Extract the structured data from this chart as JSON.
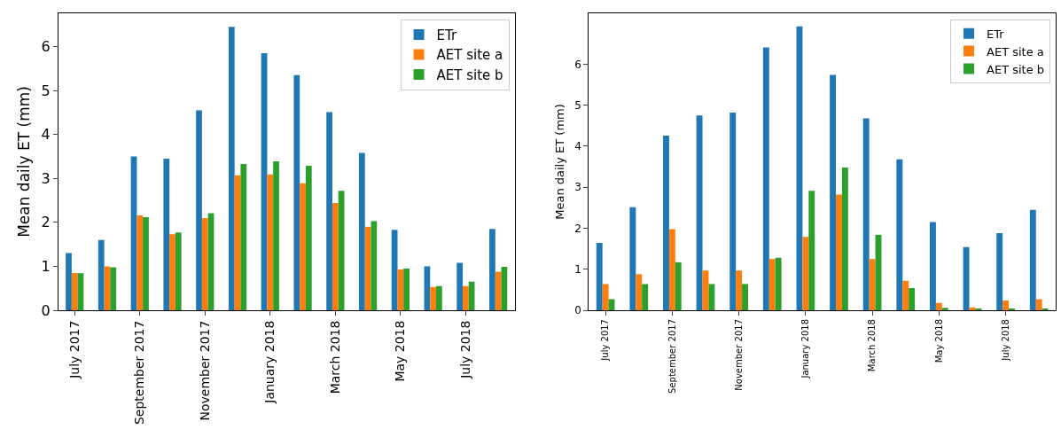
{
  "chart_data": [
    {
      "type": "bar",
      "ylabel": "Mean daily ET (mm)",
      "categories": [
        "July 2017",
        null,
        "September 2017",
        null,
        "November 2017",
        null,
        "January 2018",
        null,
        "March 2018",
        null,
        "May 2018",
        null,
        "July 2018",
        null
      ],
      "ylim": [
        0,
        6.76
      ],
      "yticks": [
        0,
        1,
        2,
        3,
        4,
        5,
        6
      ],
      "legend": "top right",
      "series": [
        {
          "name": "ETr",
          "color": "#1f77b4",
          "values": [
            1.3,
            1.6,
            3.5,
            3.45,
            4.55,
            6.45,
            5.85,
            5.35,
            4.51,
            3.58,
            1.83,
            1.0,
            1.08,
            1.85
          ]
        },
        {
          "name": "AET site a",
          "color": "#ff7f0e",
          "values": [
            0.85,
            1.0,
            2.16,
            1.73,
            2.1,
            3.07,
            3.09,
            2.89,
            2.44,
            1.9,
            0.93,
            0.53,
            0.55,
            0.88
          ]
        },
        {
          "name": "AET site b",
          "color": "#2ca02c",
          "values": [
            0.84,
            0.98,
            2.12,
            1.77,
            2.21,
            3.33,
            3.39,
            3.29,
            2.72,
            2.03,
            0.95,
            0.55,
            0.65,
            0.99
          ]
        }
      ]
    },
    {
      "type": "bar",
      "ylabel": "Mean daily ET (mm)",
      "categories": [
        "July 2017",
        null,
        "September 2017",
        null,
        "November 2017",
        null,
        "January 2018",
        null,
        "March 2018",
        null,
        "May 2018",
        null,
        "July 2018",
        null
      ],
      "ylim": [
        0,
        7.24
      ],
      "yticks": [
        0,
        1,
        2,
        3,
        4,
        5,
        6
      ],
      "legend": "top right",
      "series": [
        {
          "name": "ETr",
          "color": "#1f77b4",
          "values": [
            1.64,
            2.51,
            4.26,
            4.75,
            4.82,
            6.41,
            6.92,
            5.74,
            4.68,
            3.68,
            2.15,
            1.54,
            1.88,
            2.45
          ]
        },
        {
          "name": "AET site a",
          "color": "#ff7f0e",
          "values": [
            0.64,
            0.88,
            1.98,
            0.97,
            0.97,
            1.25,
            1.79,
            2.82,
            1.25,
            0.72,
            0.18,
            0.07,
            0.24,
            0.27
          ]
        },
        {
          "name": "AET site b",
          "color": "#2ca02c",
          "values": [
            0.27,
            0.64,
            1.17,
            0.64,
            0.64,
            1.28,
            2.91,
            3.48,
            1.84,
            0.54,
            0.06,
            0.04,
            0.03,
            0.03
          ]
        }
      ]
    }
  ]
}
